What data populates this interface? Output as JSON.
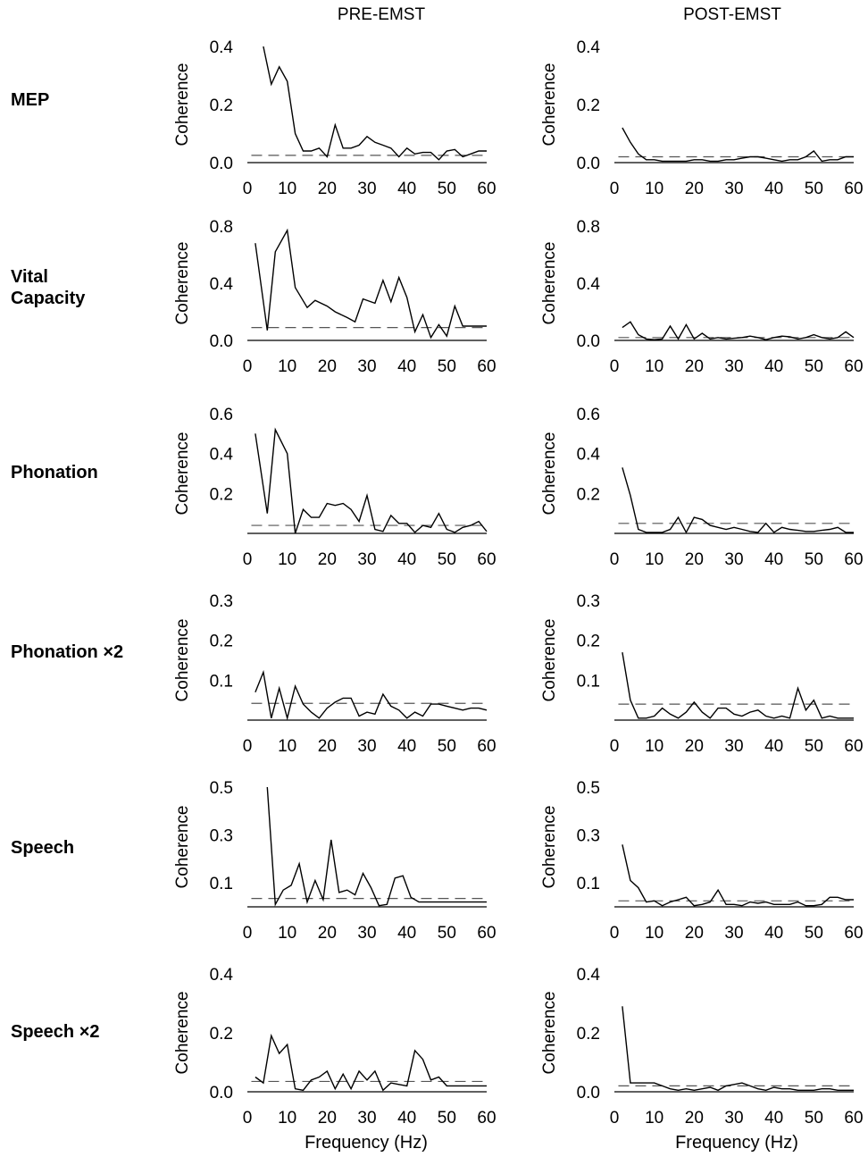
{
  "columns": [
    "PRE-EMST",
    "POST-EMST"
  ],
  "row_labels": [
    "MEP",
    "Vital\nCapacity",
    "Phonation",
    "Phonation ×2",
    "Speech",
    "Speech ×2"
  ],
  "x_axis_label": "Frequency (Hz)",
  "y_axis_label": "Coherence",
  "chart_data": [
    {
      "type": "line",
      "panel": "MEP PRE-EMST",
      "ylabel": "Coherence",
      "xlabel": "",
      "ylim": [
        0,
        0.4
      ],
      "yticks": [
        "0.0",
        "0.2",
        "0.4"
      ],
      "xlim": [
        0,
        60
      ],
      "xticks": [
        0,
        10,
        20,
        30,
        40,
        50,
        60
      ],
      "threshold": 0.025,
      "x": [
        4,
        6,
        8,
        10,
        12,
        14,
        16,
        18,
        20,
        22,
        24,
        26,
        28,
        30,
        32,
        34,
        36,
        38,
        40,
        42,
        44,
        46,
        48,
        50,
        52,
        54,
        56,
        58,
        60
      ],
      "values": [
        0.4,
        0.27,
        0.33,
        0.28,
        0.1,
        0.04,
        0.04,
        0.05,
        0.02,
        0.13,
        0.05,
        0.05,
        0.06,
        0.09,
        0.07,
        0.06,
        0.05,
        0.02,
        0.05,
        0.03,
        0.035,
        0.035,
        0.01,
        0.04,
        0.045,
        0.02,
        0.03,
        0.04,
        0.04
      ]
    },
    {
      "type": "line",
      "panel": "MEP POST-EMST",
      "ylabel": "Coherence",
      "xlabel": "",
      "ylim": [
        0,
        0.4
      ],
      "yticks": [
        "0.0",
        "0.2",
        "0.4"
      ],
      "xlim": [
        0,
        60
      ],
      "xticks": [
        0,
        10,
        20,
        30,
        40,
        50,
        60
      ],
      "threshold": 0.02,
      "x": [
        2,
        4,
        6,
        8,
        10,
        12,
        14,
        16,
        18,
        20,
        22,
        24,
        26,
        28,
        30,
        32,
        34,
        36,
        38,
        40,
        42,
        44,
        46,
        48,
        50,
        52,
        54,
        56,
        58,
        60
      ],
      "values": [
        0.12,
        0.07,
        0.03,
        0.01,
        0.01,
        0.005,
        0.005,
        0.005,
        0.005,
        0.01,
        0.01,
        0.005,
        0.005,
        0.01,
        0.01,
        0.015,
        0.02,
        0.02,
        0.015,
        0.01,
        0.005,
        0.01,
        0.01,
        0.02,
        0.04,
        0.005,
        0.01,
        0.01,
        0.02,
        0.02
      ]
    },
    {
      "type": "line",
      "panel": "Vital Capacity PRE-EMST",
      "ylabel": "Coherence",
      "xlabel": "",
      "ylim": [
        0,
        0.8
      ],
      "yticks": [
        "0.0",
        "0.4",
        "0.8"
      ],
      "xlim": [
        0,
        60
      ],
      "xticks": [
        0,
        10,
        20,
        30,
        40,
        50,
        60
      ],
      "threshold": 0.09,
      "x": [
        2,
        5,
        7,
        10,
        12,
        15,
        17,
        20,
        22,
        25,
        27,
        29,
        32,
        34,
        36,
        38,
        40,
        42,
        44,
        46,
        48,
        50,
        52,
        54,
        56,
        58,
        60
      ],
      "values": [
        0.68,
        0.07,
        0.62,
        0.77,
        0.37,
        0.23,
        0.28,
        0.24,
        0.2,
        0.16,
        0.13,
        0.29,
        0.26,
        0.42,
        0.27,
        0.44,
        0.3,
        0.06,
        0.18,
        0.02,
        0.11,
        0.03,
        0.24,
        0.1,
        0.1,
        0.1,
        0.1
      ]
    },
    {
      "type": "line",
      "panel": "Vital Capacity POST-EMST",
      "ylabel": "Coherence",
      "xlabel": "",
      "ylim": [
        0,
        0.8
      ],
      "yticks": [
        "0.0",
        "0.4",
        "0.8"
      ],
      "xlim": [
        0,
        60
      ],
      "xticks": [
        0,
        10,
        20,
        30,
        40,
        50,
        60
      ],
      "threshold": 0.02,
      "x": [
        2,
        4,
        6,
        8,
        10,
        12,
        14,
        16,
        18,
        20,
        22,
        24,
        26,
        28,
        30,
        32,
        34,
        36,
        38,
        40,
        42,
        44,
        46,
        48,
        50,
        52,
        54,
        56,
        58,
        60
      ],
      "values": [
        0.09,
        0.13,
        0.04,
        0.01,
        0.005,
        0.01,
        0.1,
        0.01,
        0.11,
        0.01,
        0.05,
        0.01,
        0.02,
        0.01,
        0.015,
        0.02,
        0.03,
        0.02,
        0.005,
        0.02,
        0.03,
        0.025,
        0.01,
        0.02,
        0.04,
        0.02,
        0.01,
        0.02,
        0.06,
        0.02
      ]
    },
    {
      "type": "line",
      "panel": "Phonation PRE-EMST",
      "ylabel": "Coherence",
      "xlabel": "",
      "ylim": [
        0,
        0.6
      ],
      "yticks": [
        "0.2",
        "0.4",
        "0.6"
      ],
      "xlim": [
        0,
        60
      ],
      "xticks": [
        0,
        10,
        20,
        30,
        40,
        50,
        60
      ],
      "threshold": 0.04,
      "x": [
        2,
        5,
        7,
        10,
        12,
        14,
        16,
        18,
        20,
        22,
        24,
        26,
        28,
        30,
        32,
        34,
        36,
        38,
        40,
        42,
        44,
        46,
        48,
        50,
        52,
        54,
        56,
        58,
        60
      ],
      "values": [
        0.5,
        0.1,
        0.52,
        0.4,
        0.0,
        0.12,
        0.08,
        0.08,
        0.15,
        0.14,
        0.15,
        0.12,
        0.06,
        0.19,
        0.02,
        0.01,
        0.09,
        0.05,
        0.05,
        0.005,
        0.04,
        0.03,
        0.1,
        0.02,
        0.005,
        0.03,
        0.04,
        0.06,
        0.01
      ]
    },
    {
      "type": "line",
      "panel": "Phonation POST-EMST",
      "ylabel": "Coherence",
      "xlabel": "",
      "ylim": [
        0,
        0.6
      ],
      "yticks": [
        "0.2",
        "0.4",
        "0.6"
      ],
      "xlim": [
        0,
        60
      ],
      "xticks": [
        0,
        10,
        20,
        30,
        40,
        50,
        60
      ],
      "threshold": 0.05,
      "x": [
        2,
        4,
        6,
        8,
        10,
        12,
        14,
        16,
        18,
        20,
        22,
        24,
        26,
        28,
        30,
        32,
        34,
        36,
        38,
        40,
        42,
        44,
        46,
        48,
        50,
        52,
        54,
        56,
        58,
        60
      ],
      "values": [
        0.33,
        0.19,
        0.02,
        0.005,
        0.005,
        0.005,
        0.02,
        0.08,
        0.005,
        0.08,
        0.07,
        0.04,
        0.03,
        0.02,
        0.03,
        0.02,
        0.01,
        0.005,
        0.05,
        0.005,
        0.03,
        0.02,
        0.015,
        0.01,
        0.01,
        0.015,
        0.02,
        0.03,
        0.005,
        0.005
      ]
    },
    {
      "type": "line",
      "panel": "Phonation ×2 PRE-EMST",
      "ylabel": "Coherence",
      "xlabel": "",
      "ylim": [
        0,
        0.3
      ],
      "yticks": [
        "0.1",
        "0.2",
        "0.3"
      ],
      "xlim": [
        0,
        60
      ],
      "xticks": [
        0,
        10,
        20,
        30,
        40,
        50,
        60
      ],
      "threshold": 0.042,
      "x": [
        2,
        4,
        6,
        8,
        10,
        12,
        14,
        16,
        18,
        20,
        22,
        24,
        26,
        28,
        30,
        32,
        34,
        36,
        38,
        40,
        42,
        44,
        46,
        48,
        50,
        52,
        54,
        56,
        58,
        60
      ],
      "values": [
        0.07,
        0.12,
        0.005,
        0.08,
        0.005,
        0.085,
        0.04,
        0.02,
        0.005,
        0.03,
        0.045,
        0.055,
        0.055,
        0.01,
        0.02,
        0.015,
        0.065,
        0.035,
        0.025,
        0.005,
        0.02,
        0.01,
        0.04,
        0.04,
        0.035,
        0.03,
        0.025,
        0.03,
        0.03,
        0.025
      ]
    },
    {
      "type": "line",
      "panel": "Phonation ×2 POST-EMST",
      "ylabel": "Coherence",
      "xlabel": "",
      "ylim": [
        0,
        0.3
      ],
      "yticks": [
        "0.1",
        "0.2",
        "0.3"
      ],
      "xlim": [
        0,
        60
      ],
      "xticks": [
        0,
        10,
        20,
        30,
        40,
        50,
        60
      ],
      "threshold": 0.04,
      "x": [
        2,
        4,
        6,
        8,
        10,
        12,
        14,
        16,
        18,
        20,
        22,
        24,
        26,
        28,
        30,
        32,
        34,
        36,
        38,
        40,
        42,
        44,
        46,
        48,
        50,
        52,
        54,
        56,
        58,
        60
      ],
      "values": [
        0.17,
        0.05,
        0.005,
        0.005,
        0.01,
        0.03,
        0.015,
        0.005,
        0.02,
        0.045,
        0.02,
        0.005,
        0.03,
        0.03,
        0.015,
        0.01,
        0.02,
        0.025,
        0.01,
        0.005,
        0.01,
        0.005,
        0.08,
        0.025,
        0.05,
        0.005,
        0.01,
        0.005,
        0.005,
        0.005
      ]
    },
    {
      "type": "line",
      "panel": "Speech PRE-EMST",
      "ylabel": "Coherence",
      "xlabel": "",
      "ylim": [
        0,
        0.5
      ],
      "yticks": [
        "0.1",
        "0.3",
        "0.5"
      ],
      "xlim": [
        0,
        60
      ],
      "xticks": [
        0,
        10,
        20,
        30,
        40,
        50,
        60
      ],
      "threshold": 0.035,
      "x": [
        5,
        7,
        9,
        11,
        13,
        15,
        17,
        19,
        21,
        23,
        25,
        27,
        29,
        31,
        33,
        35,
        37,
        39,
        41,
        43,
        45,
        47,
        49,
        51,
        53,
        55,
        57,
        59,
        60
      ],
      "values": [
        0.5,
        0.01,
        0.07,
        0.09,
        0.18,
        0.02,
        0.11,
        0.03,
        0.28,
        0.06,
        0.07,
        0.05,
        0.14,
        0.08,
        0.005,
        0.01,
        0.12,
        0.13,
        0.04,
        0.02,
        0.02,
        0.02,
        0.02,
        0.02,
        0.02,
        0.02,
        0.02,
        0.02,
        0.02
      ]
    },
    {
      "type": "line",
      "panel": "Speech POST-EMST",
      "ylabel": "Coherence",
      "xlabel": "",
      "ylim": [
        0,
        0.5
      ],
      "yticks": [
        "0.1",
        "0.3",
        "0.5"
      ],
      "xlim": [
        0,
        60
      ],
      "xticks": [
        0,
        10,
        20,
        30,
        40,
        50,
        60
      ],
      "threshold": 0.025,
      "x": [
        2,
        4,
        6,
        8,
        10,
        12,
        14,
        16,
        18,
        20,
        22,
        24,
        26,
        28,
        30,
        32,
        34,
        36,
        38,
        40,
        42,
        44,
        46,
        48,
        50,
        52,
        54,
        56,
        58,
        60
      ],
      "values": [
        0.26,
        0.11,
        0.08,
        0.02,
        0.025,
        0.005,
        0.02,
        0.03,
        0.04,
        0.005,
        0.01,
        0.02,
        0.07,
        0.01,
        0.01,
        0.005,
        0.02,
        0.015,
        0.02,
        0.01,
        0.01,
        0.01,
        0.02,
        0.005,
        0.005,
        0.01,
        0.04,
        0.04,
        0.03,
        0.03
      ]
    },
    {
      "type": "line",
      "panel": "Speech ×2 PRE-EMST",
      "ylabel": "Coherence",
      "xlabel": "",
      "ylim": [
        0,
        0.4
      ],
      "yticks": [
        "0.0",
        "0.2",
        "0.4"
      ],
      "xlim": [
        0,
        60
      ],
      "xticks": [
        0,
        10,
        20,
        30,
        40,
        50,
        60
      ],
      "threshold": 0.035,
      "x": [
        2,
        4,
        6,
        8,
        10,
        12,
        14,
        16,
        18,
        20,
        22,
        24,
        26,
        28,
        30,
        32,
        34,
        36,
        38,
        40,
        42,
        44,
        46,
        48,
        50,
        52,
        54,
        56,
        58,
        60
      ],
      "values": [
        0.05,
        0.03,
        0.19,
        0.13,
        0.16,
        0.01,
        0.005,
        0.04,
        0.05,
        0.07,
        0.01,
        0.06,
        0.01,
        0.07,
        0.04,
        0.07,
        0.005,
        0.03,
        0.025,
        0.02,
        0.14,
        0.11,
        0.04,
        0.05,
        0.02,
        0.02,
        0.02,
        0.02,
        0.02,
        0.02
      ]
    },
    {
      "type": "line",
      "panel": "Speech ×2 POST-EMST",
      "ylabel": "Coherence",
      "xlabel": "",
      "ylim": [
        0,
        0.4
      ],
      "yticks": [
        "0.0",
        "0.2",
        "0.4"
      ],
      "xlim": [
        0,
        60
      ],
      "xticks": [
        0,
        10,
        20,
        30,
        40,
        50,
        60
      ],
      "threshold": 0.02,
      "x": [
        2,
        4,
        6,
        8,
        10,
        12,
        14,
        16,
        18,
        20,
        22,
        24,
        26,
        28,
        30,
        32,
        34,
        36,
        38,
        40,
        42,
        44,
        46,
        48,
        50,
        52,
        54,
        56,
        58,
        60
      ],
      "values": [
        0.29,
        0.03,
        0.03,
        0.03,
        0.03,
        0.02,
        0.01,
        0.005,
        0.01,
        0.005,
        0.01,
        0.015,
        0.005,
        0.02,
        0.025,
        0.03,
        0.02,
        0.01,
        0.005,
        0.015,
        0.01,
        0.01,
        0.005,
        0.005,
        0.005,
        0.01,
        0.01,
        0.005,
        0.005,
        0.005
      ]
    }
  ]
}
